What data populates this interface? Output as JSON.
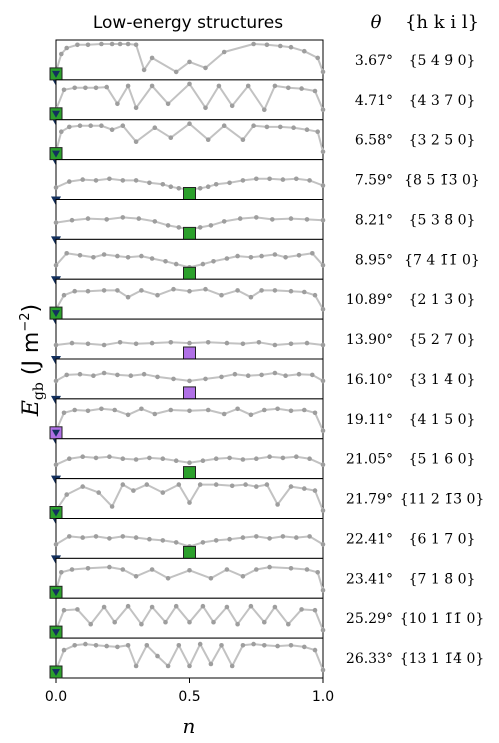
{
  "chart_data": {
    "type": "line",
    "title": "Low-energy structures",
    "xlabel": "n",
    "ylabel": "E_gb (J m^-2)",
    "xlim": [
      0,
      1
    ],
    "x_ticks": [
      "0.0",
      "0.5",
      "1.0"
    ],
    "theta_header": "θ",
    "hkil_header": "{h k i l}",
    "colors": {
      "line": "#c2c2c2",
      "point": "#9e9e9e",
      "square_green": "#2ca02c",
      "square_purple": "#b070e6",
      "triangle": "#13305e"
    },
    "panels": [
      {
        "theta": "3.67°",
        "hkil": "{5 4 9̄ 0}",
        "x": [
          0,
          0.02,
          0.04,
          0.08,
          0.12,
          0.17,
          0.21,
          0.24,
          0.27,
          0.3,
          0.33,
          0.36,
          0.45,
          0.5,
          0.56,
          0.63,
          0.74,
          0.79,
          0.84,
          0.88,
          0.93,
          0.98,
          1.0
        ],
        "y": [
          0.2,
          0.65,
          0.8,
          0.88,
          0.88,
          0.9,
          0.9,
          0.9,
          0.9,
          0.88,
          0.25,
          0.55,
          0.2,
          0.45,
          0.3,
          0.7,
          0.9,
          0.88,
          0.85,
          0.82,
          0.72,
          0.55,
          0.2
        ],
        "square": {
          "x": 0.0,
          "color": "green"
        },
        "triangle": true
      },
      {
        "theta": "4.71°",
        "hkil": "{4 3 7̄ 0}",
        "x": [
          0,
          0.03,
          0.07,
          0.11,
          0.15,
          0.19,
          0.23,
          0.27,
          0.3,
          0.36,
          0.42,
          0.5,
          0.56,
          0.61,
          0.66,
          0.72,
          0.78,
          0.82,
          0.87,
          0.92,
          0.97,
          1.0
        ],
        "y": [
          0.25,
          0.75,
          0.8,
          0.8,
          0.8,
          0.82,
          0.4,
          0.85,
          0.3,
          0.85,
          0.4,
          0.9,
          0.3,
          0.85,
          0.35,
          0.85,
          0.25,
          0.85,
          0.8,
          0.78,
          0.72,
          0.25
        ],
        "square": {
          "x": 0.0,
          "color": "green"
        },
        "triangle": true
      },
      {
        "theta": "6.58°",
        "hkil": "{3 2 5̄ 0}",
        "x": [
          0,
          0.02,
          0.05,
          0.09,
          0.13,
          0.17,
          0.21,
          0.25,
          0.3,
          0.37,
          0.43,
          0.5,
          0.57,
          0.63,
          0.7,
          0.74,
          0.79,
          0.84,
          0.89,
          0.94,
          0.98,
          1.0
        ],
        "y": [
          0.2,
          0.7,
          0.82,
          0.85,
          0.85,
          0.85,
          0.75,
          0.85,
          0.45,
          0.8,
          0.55,
          0.9,
          0.5,
          0.85,
          0.5,
          0.85,
          0.82,
          0.82,
          0.8,
          0.75,
          0.7,
          0.2
        ],
        "square": {
          "x": 0.0,
          "color": "green"
        },
        "triangle": true
      },
      {
        "theta": "7.59°",
        "hkil": "{8 5 1̄3̄ 0}",
        "x": [
          0,
          0.05,
          0.1,
          0.15,
          0.2,
          0.25,
          0.3,
          0.35,
          0.4,
          0.43,
          0.46,
          0.5,
          0.54,
          0.57,
          0.6,
          0.65,
          0.7,
          0.75,
          0.8,
          0.85,
          0.9,
          0.95,
          1.0
        ],
        "y": [
          0.3,
          0.45,
          0.5,
          0.48,
          0.52,
          0.48,
          0.48,
          0.42,
          0.38,
          0.32,
          0.28,
          0.25,
          0.28,
          0.32,
          0.38,
          0.42,
          0.48,
          0.52,
          0.52,
          0.5,
          0.52,
          0.48,
          0.35
        ],
        "square": {
          "x": 0.5,
          "color": "green"
        },
        "triangle": true
      },
      {
        "theta": "8.21°",
        "hkil": "{5 3 8̄ 0}",
        "x": [
          0,
          0.06,
          0.12,
          0.19,
          0.25,
          0.31,
          0.37,
          0.42,
          0.46,
          0.5,
          0.54,
          0.58,
          0.63,
          0.69,
          0.75,
          0.81,
          0.88,
          0.94,
          1.0
        ],
        "y": [
          0.42,
          0.48,
          0.52,
          0.5,
          0.55,
          0.52,
          0.45,
          0.35,
          0.3,
          0.25,
          0.3,
          0.35,
          0.45,
          0.52,
          0.55,
          0.5,
          0.52,
          0.5,
          0.48
        ],
        "square": {
          "x": 0.5,
          "color": "green"
        },
        "triangle": true
      },
      {
        "theta": "8.95°",
        "hkil": "{7 4 1̄1̄ 0}",
        "x": [
          0,
          0.04,
          0.09,
          0.14,
          0.18,
          0.23,
          0.27,
          0.32,
          0.36,
          0.41,
          0.45,
          0.5,
          0.55,
          0.59,
          0.64,
          0.68,
          0.73,
          0.77,
          0.82,
          0.86,
          0.91,
          0.96,
          1.0
        ],
        "y": [
          0.35,
          0.65,
          0.6,
          0.55,
          0.62,
          0.58,
          0.55,
          0.58,
          0.52,
          0.45,
          0.38,
          0.3,
          0.38,
          0.45,
          0.52,
          0.58,
          0.55,
          0.58,
          0.62,
          0.55,
          0.6,
          0.65,
          0.35
        ],
        "square": {
          "x": 0.5,
          "color": "green"
        },
        "triangle": true
      },
      {
        "theta": "10.89°",
        "hkil": "{2 1 3̄ 0}",
        "x": [
          0,
          0.03,
          0.07,
          0.12,
          0.18,
          0.23,
          0.27,
          0.32,
          0.38,
          0.44,
          0.5,
          0.56,
          0.62,
          0.68,
          0.73,
          0.77,
          0.82,
          0.88,
          0.93,
          0.97,
          1.0
        ],
        "y": [
          0.25,
          0.6,
          0.7,
          0.7,
          0.72,
          0.72,
          0.55,
          0.72,
          0.6,
          0.75,
          0.7,
          0.75,
          0.6,
          0.72,
          0.55,
          0.72,
          0.72,
          0.7,
          0.68,
          0.6,
          0.25
        ],
        "square": {
          "x": 0.0,
          "color": "green"
        },
        "triangle": true
      },
      {
        "theta": "13.90°",
        "hkil": "{5 2 7̄ 0}",
        "x": [
          0,
          0.06,
          0.12,
          0.18,
          0.24,
          0.3,
          0.36,
          0.43,
          0.5,
          0.57,
          0.64,
          0.7,
          0.76,
          0.82,
          0.88,
          0.94,
          1.0
        ],
        "y": [
          0.35,
          0.4,
          0.38,
          0.35,
          0.42,
          0.38,
          0.4,
          0.42,
          0.4,
          0.42,
          0.4,
          0.38,
          0.42,
          0.35,
          0.38,
          0.4,
          0.35
        ],
        "square": {
          "x": 0.5,
          "color": "purple"
        },
        "triangle": true
      },
      {
        "theta": "16.10°",
        "hkil": "{3 1 4̄ 0}",
        "x": [
          0,
          0.04,
          0.09,
          0.14,
          0.18,
          0.23,
          0.28,
          0.33,
          0.38,
          0.44,
          0.5,
          0.56,
          0.62,
          0.67,
          0.72,
          0.77,
          0.82,
          0.86,
          0.91,
          0.96,
          1.0
        ],
        "y": [
          0.45,
          0.6,
          0.62,
          0.58,
          0.65,
          0.6,
          0.58,
          0.62,
          0.55,
          0.5,
          0.45,
          0.5,
          0.55,
          0.62,
          0.58,
          0.6,
          0.65,
          0.58,
          0.62,
          0.6,
          0.45
        ],
        "square": {
          "x": 0.5,
          "color": "purple"
        },
        "triangle": true
      },
      {
        "theta": "19.11°",
        "hkil": "{4 1 5̄ 0}",
        "x": [
          0,
          0.03,
          0.07,
          0.12,
          0.17,
          0.22,
          0.27,
          0.32,
          0.37,
          0.43,
          0.5,
          0.57,
          0.63,
          0.68,
          0.73,
          0.78,
          0.83,
          0.88,
          0.93,
          0.97,
          1.0
        ],
        "y": [
          0.2,
          0.65,
          0.72,
          0.7,
          0.75,
          0.72,
          0.6,
          0.75,
          0.62,
          0.72,
          0.7,
          0.72,
          0.62,
          0.75,
          0.6,
          0.72,
          0.75,
          0.7,
          0.72,
          0.65,
          0.2
        ],
        "square": {
          "x": 0.0,
          "color": "purple"
        },
        "triangle": true
      },
      {
        "theta": "21.05°",
        "hkil": "{5 1 6̄ 0}",
        "x": [
          0,
          0.05,
          0.1,
          0.15,
          0.2,
          0.25,
          0.3,
          0.35,
          0.4,
          0.45,
          0.5,
          0.55,
          0.6,
          0.65,
          0.7,
          0.75,
          0.8,
          0.85,
          0.9,
          0.95,
          1.0
        ],
        "y": [
          0.35,
          0.5,
          0.55,
          0.52,
          0.55,
          0.5,
          0.48,
          0.52,
          0.5,
          0.45,
          0.4,
          0.45,
          0.5,
          0.52,
          0.48,
          0.5,
          0.55,
          0.52,
          0.55,
          0.5,
          0.35
        ],
        "square": {
          "x": 0.5,
          "color": "green"
        },
        "triangle": true
      },
      {
        "theta": "21.79°",
        "hkil": "{11 2 1̄3̄ 0}",
        "x": [
          0,
          0.04,
          0.1,
          0.16,
          0.21,
          0.25,
          0.29,
          0.34,
          0.4,
          0.46,
          0.5,
          0.54,
          0.6,
          0.66,
          0.71,
          0.75,
          0.79,
          0.83,
          0.88,
          0.93,
          0.97,
          1.0
        ],
        "y": [
          0.2,
          0.6,
          0.8,
          0.65,
          0.3,
          0.85,
          0.7,
          0.85,
          0.65,
          0.85,
          0.4,
          0.85,
          0.85,
          0.82,
          0.85,
          0.8,
          0.85,
          0.35,
          0.8,
          0.75,
          0.7,
          0.2
        ],
        "square": {
          "x": 0.0,
          "color": "green"
        },
        "triangle": true
      },
      {
        "theta": "22.41°",
        "hkil": "{6 1 7̄ 0}",
        "x": [
          0,
          0.05,
          0.1,
          0.15,
          0.2,
          0.25,
          0.3,
          0.35,
          0.4,
          0.45,
          0.5,
          0.55,
          0.6,
          0.65,
          0.7,
          0.75,
          0.8,
          0.85,
          0.9,
          0.95,
          1.0
        ],
        "y": [
          0.35,
          0.55,
          0.52,
          0.55,
          0.5,
          0.55,
          0.52,
          0.48,
          0.45,
          0.4,
          0.3,
          0.4,
          0.45,
          0.48,
          0.52,
          0.55,
          0.5,
          0.55,
          0.52,
          0.55,
          0.35
        ],
        "square": {
          "x": 0.5,
          "color": "green"
        },
        "triangle": true
      },
      {
        "theta": "23.41°",
        "hkil": "{7 1 8̄ 0}",
        "x": [
          0,
          0.02,
          0.06,
          0.12,
          0.2,
          0.25,
          0.3,
          0.36,
          0.42,
          0.5,
          0.58,
          0.64,
          0.7,
          0.75,
          0.8,
          0.88,
          0.94,
          0.98,
          1.0
        ],
        "y": [
          0.2,
          0.65,
          0.72,
          0.75,
          0.78,
          0.72,
          0.55,
          0.72,
          0.5,
          0.7,
          0.5,
          0.72,
          0.55,
          0.72,
          0.78,
          0.75,
          0.72,
          0.65,
          0.2
        ],
        "square": {
          "x": 0.0,
          "color": "green"
        },
        "triangle": false
      },
      {
        "theta": "25.29°",
        "hkil": "{10 1 1̄1̄ 0}",
        "x": [
          0,
          0.03,
          0.08,
          0.13,
          0.18,
          0.22,
          0.27,
          0.32,
          0.36,
          0.41,
          0.45,
          0.5,
          0.55,
          0.59,
          0.64,
          0.68,
          0.73,
          0.78,
          0.82,
          0.87,
          0.92,
          0.97,
          1.0
        ],
        "y": [
          0.2,
          0.7,
          0.72,
          0.35,
          0.78,
          0.4,
          0.8,
          0.35,
          0.78,
          0.4,
          0.8,
          0.4,
          0.8,
          0.4,
          0.78,
          0.35,
          0.8,
          0.4,
          0.78,
          0.35,
          0.72,
          0.7,
          0.2
        ],
        "square": {
          "x": 0.0,
          "color": "green"
        },
        "triangle": false
      },
      {
        "theta": "26.33°",
        "hkil": "{13 1 1̄4̄ 0}",
        "x": [
          0,
          0.03,
          0.07,
          0.11,
          0.15,
          0.19,
          0.23,
          0.27,
          0.3,
          0.34,
          0.38,
          0.42,
          0.46,
          0.5,
          0.54,
          0.58,
          0.62,
          0.66,
          0.7,
          0.74,
          0.78,
          0.83,
          0.88,
          0.93,
          0.97,
          1.0
        ],
        "y": [
          0.2,
          0.7,
          0.82,
          0.85,
          0.82,
          0.8,
          0.78,
          0.82,
          0.3,
          0.82,
          0.55,
          0.3,
          0.82,
          0.3,
          0.85,
          0.35,
          0.82,
          0.3,
          0.82,
          0.85,
          0.82,
          0.8,
          0.82,
          0.78,
          0.7,
          0.2
        ],
        "square": {
          "x": 0.0,
          "color": "green"
        },
        "triangle": false
      }
    ]
  }
}
